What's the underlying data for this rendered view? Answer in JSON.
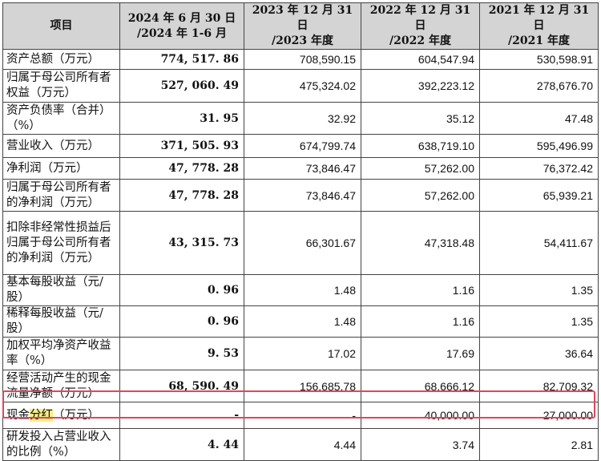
{
  "table": {
    "headers": [
      "项目",
      "2024 年 6 月 30 日\n/2024 年 1-6 月",
      "2023 年 12 月 31 日\n/2023 年度",
      "2022 年 12 月 31 日\n/2022 年度",
      "2021 年 12 月 31 日\n/2021 年度"
    ],
    "rows": [
      {
        "label": "资产总额（万元）",
        "values": [
          "774, 517. 86",
          "708,590.15",
          "604,547.94",
          "530,598.91"
        ]
      },
      {
        "label": "归属于母公司所有者权益（万元）",
        "values": [
          "527, 060. 49",
          "475,324.02",
          "392,223.12",
          "278,676.70"
        ]
      },
      {
        "label": "资产负债率（合并）（%）",
        "values": [
          "31. 95",
          "32.92",
          "35.12",
          "47.48"
        ]
      },
      {
        "label": "营业收入（万元）",
        "values": [
          "371, 505. 93",
          "674,799.74",
          "638,719.10",
          "595,496.99"
        ]
      },
      {
        "label": "净利润（万元）",
        "values": [
          "47, 778. 28",
          "73,846.47",
          "57,262.00",
          "76,372.42"
        ]
      },
      {
        "label": "归属于母公司所有者的净利润（万元）",
        "values": [
          "47, 778. 28",
          "73,846.47",
          "57,262.00",
          "65,939.21"
        ]
      },
      {
        "label": "扣除非经常性损益后归属于母公司所有者的净利润（万元）",
        "values": [
          "43, 315. 73",
          "66,301.67",
          "47,318.48",
          "54,411.67"
        ]
      },
      {
        "label": "基本每股收益（元/股）",
        "values": [
          "0. 96",
          "1.48",
          "1.16",
          "1.35"
        ]
      },
      {
        "label": "稀释每股收益（元/股）",
        "values": [
          "0. 96",
          "1.48",
          "1.16",
          "1.35"
        ]
      },
      {
        "label": "加权平均净资产收益率（%）",
        "values": [
          "9. 53",
          "17.02",
          "17.69",
          "36.64"
        ]
      },
      {
        "label": "经营活动产生的现金流量净额（万元）",
        "values": [
          "68, 590. 49",
          "156,685.78",
          "68,666.12",
          "82,709.32"
        ]
      },
      {
        "label_parts": [
          "现金",
          "分红",
          "（万元）"
        ],
        "values": [
          "-",
          "-",
          "40,000.00",
          "27,000.00"
        ]
      },
      {
        "label": "研发投入占营业收入的比例（%）",
        "values": [
          "4. 44",
          "4.44",
          "3.74",
          "2.81"
        ]
      }
    ]
  },
  "colors": {
    "header_bg": "#d4d4d4",
    "highlight": "#f5ef85",
    "box": "#e0465e"
  }
}
